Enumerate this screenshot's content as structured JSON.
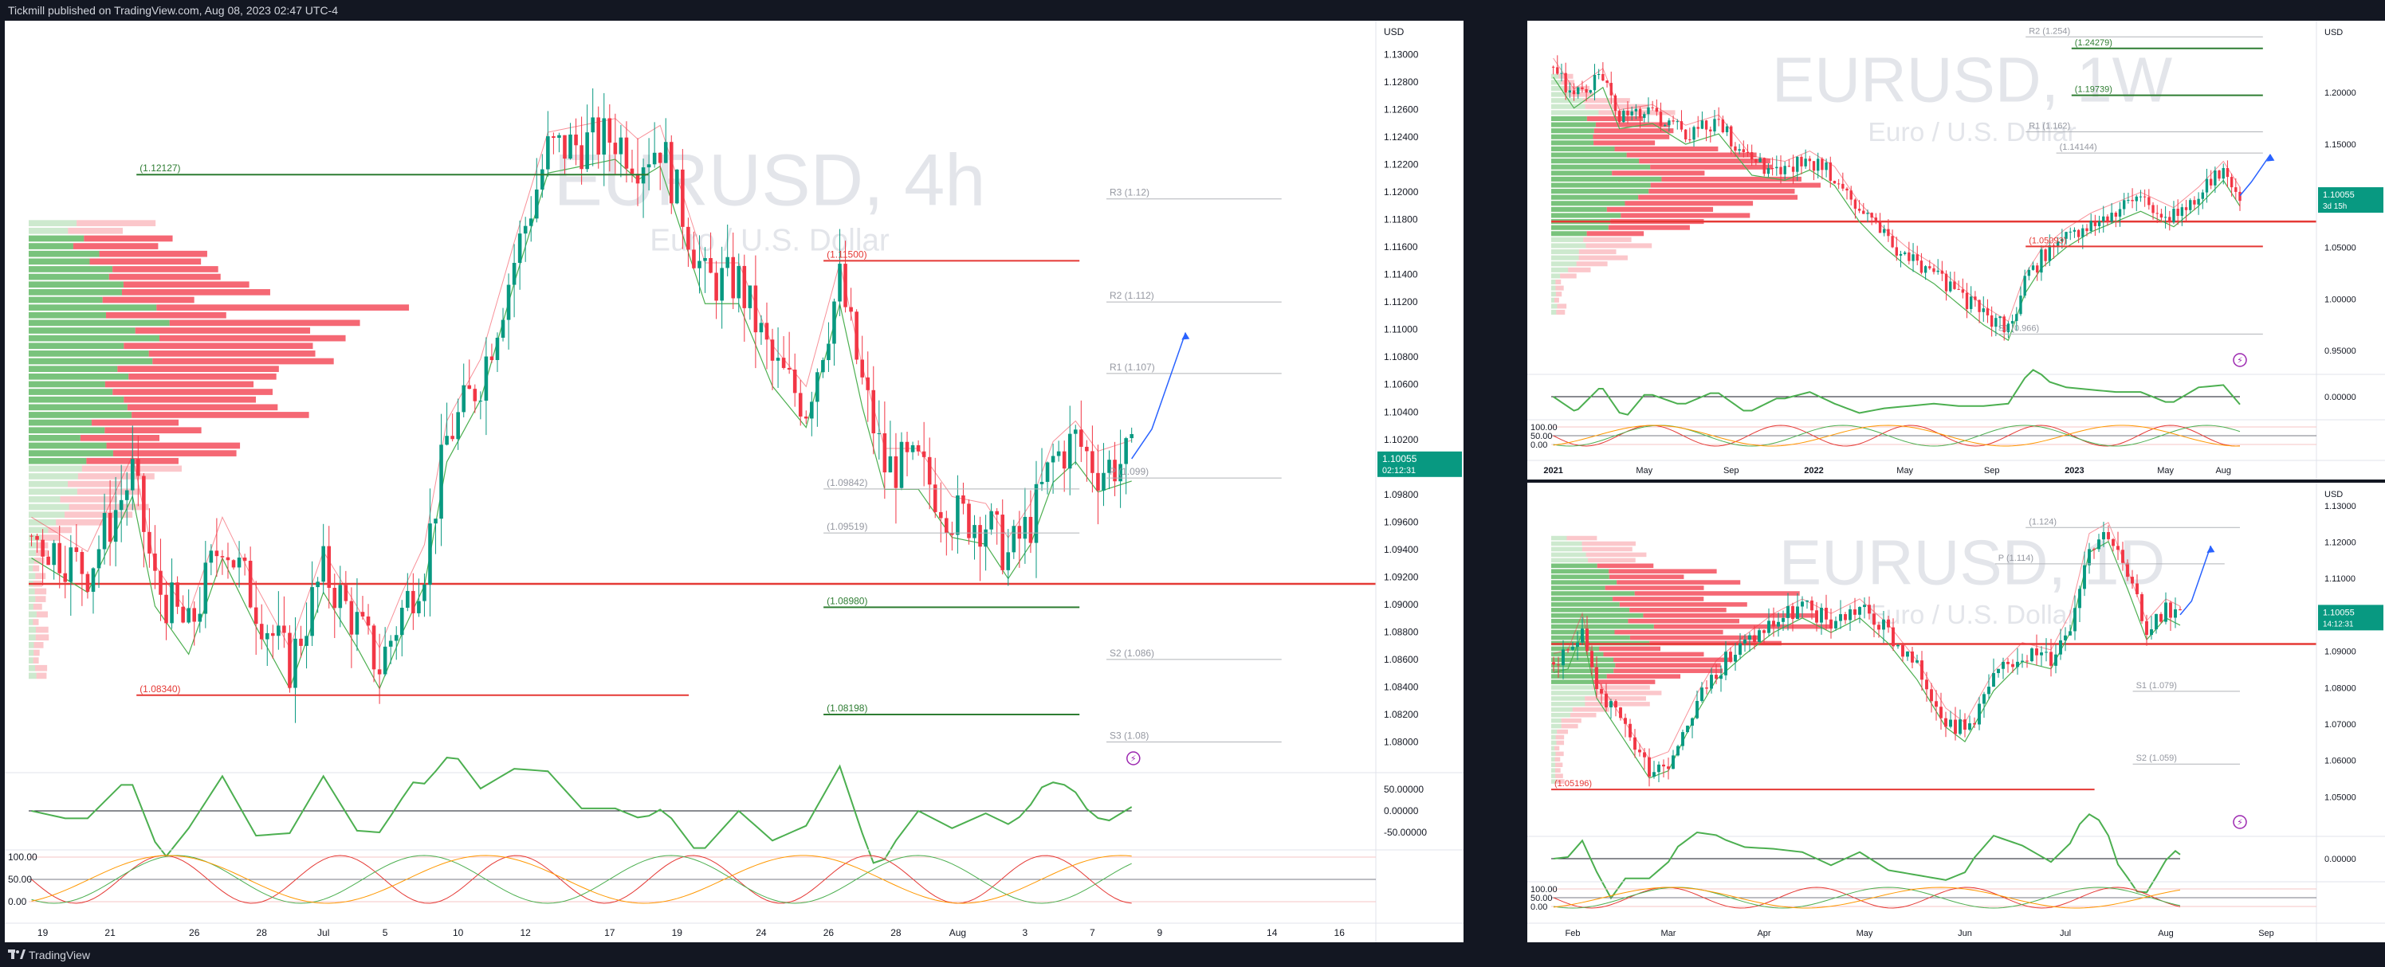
{
  "header": {
    "published": "Tickmill published on TradingView.com, Aug 08, 2023 02:47 UTC-4"
  },
  "footer": {
    "brand": "TradingView"
  },
  "colors": {
    "bull": "#089981",
    "bear": "#f23645",
    "bg": "#ffffff",
    "frame": "#131722",
    "ma_green": "#4caf50",
    "projection": "#2962ff"
  },
  "chart_data": [
    {
      "id": "main",
      "type": "candlestick",
      "watermark_symbol": "EURUSD, 4h",
      "watermark_desc": "Euro / U.S. Dollar",
      "currency": "USD",
      "ylim": [
        1.078,
        1.132
      ],
      "y_ticks": [
        "1.13000",
        "1.12800",
        "1.12600",
        "1.12400",
        "1.12200",
        "1.12000",
        "1.11800",
        "1.11600",
        "1.11400",
        "1.11200",
        "1.11000",
        "1.10800",
        "1.10600",
        "1.10400",
        "1.10200",
        "1.10000",
        "1.09800",
        "1.09600",
        "1.09400",
        "1.09200",
        "1.09000",
        "1.08800",
        "1.08600",
        "1.08400",
        "1.08200",
        "1.08000"
      ],
      "x_ticks": [
        {
          "label": "19",
          "i": 2
        },
        {
          "label": "21",
          "i": 14
        },
        {
          "label": "26",
          "i": 29
        },
        {
          "label": "28",
          "i": 41
        },
        {
          "label": "Jul",
          "i": 52
        },
        {
          "label": "5",
          "i": 63
        },
        {
          "label": "10",
          "i": 76
        },
        {
          "label": "12",
          "i": 88
        },
        {
          "label": "17",
          "i": 103
        },
        {
          "label": "19",
          "i": 115
        },
        {
          "label": "24",
          "i": 130
        },
        {
          "label": "26",
          "i": 142
        },
        {
          "label": "28",
          "i": 154
        },
        {
          "label": "Aug",
          "i": 165
        },
        {
          "label": "3",
          "i": 177
        },
        {
          "label": "7",
          "i": 189
        },
        {
          "label": "9",
          "i": 201
        },
        {
          "label": "14",
          "i": 221
        },
        {
          "label": "16",
          "i": 233
        }
      ],
      "n_slots": 240,
      "anchors": [
        [
          0,
          1.095
        ],
        [
          10,
          1.0925
        ],
        [
          18,
          1.0995
        ],
        [
          22,
          1.0915
        ],
        [
          28,
          1.088
        ],
        [
          34,
          1.095
        ],
        [
          40,
          1.09
        ],
        [
          46,
          1.0855
        ],
        [
          52,
          1.0925
        ],
        [
          58,
          1.0885
        ],
        [
          62,
          1.0855
        ],
        [
          66,
          1.0895
        ],
        [
          70,
          1.093
        ],
        [
          74,
          1.102
        ],
        [
          80,
          1.1065
        ],
        [
          86,
          1.115
        ],
        [
          92,
          1.123
        ],
        [
          98,
          1.1235
        ],
        [
          104,
          1.124
        ],
        [
          108,
          1.1225
        ],
        [
          112,
          1.1235
        ],
        [
          116,
          1.1185
        ],
        [
          120,
          1.1135
        ],
        [
          126,
          1.1135
        ],
        [
          132,
          1.1075
        ],
        [
          138,
          1.1045
        ],
        [
          144,
          1.1135
        ],
        [
          148,
          1.106
        ],
        [
          152,
          1.1
        ],
        [
          158,
          1.1
        ],
        [
          164,
          1.0965
        ],
        [
          170,
          1.096
        ],
        [
          174,
          1.0935
        ],
        [
          178,
          1.096
        ],
        [
          182,
          1.1005
        ],
        [
          186,
          1.102
        ],
        [
          190,
          1.0998
        ],
        [
          196,
          1.1006
        ]
      ],
      "last_price": "1.10055",
      "countdown": "02:12:31",
      "levels": [
        {
          "label": "(1.12127)",
          "value": 1.12127,
          "color": "#2e7d32",
          "x0": 0.08,
          "x1": 0.46
        },
        {
          "label": "R3 (1.12)",
          "value": 1.1195,
          "color": "#b0b3b8",
          "x0": 0.8,
          "x1": 0.93
        },
        {
          "label": "(1.11500)",
          "value": 1.115,
          "color": "#e53935",
          "x0": 0.59,
          "x1": 0.78
        },
        {
          "label": "R2 (1.112)",
          "value": 1.112,
          "color": "#b0b3b8",
          "x0": 0.8,
          "x1": 0.93
        },
        {
          "label": "R1 (1.107)",
          "value": 1.1068,
          "color": "#b0b3b8",
          "x0": 0.8,
          "x1": 0.93
        },
        {
          "label": "(1.09842)",
          "value": 1.0984,
          "color": "#b0b3b8",
          "x0": 0.59,
          "x1": 0.78
        },
        {
          "label": "P (1.099)",
          "value": 1.0992,
          "color": "#b0b3b8",
          "x0": 0.8,
          "x1": 0.93
        },
        {
          "label": "(1.09519)",
          "value": 1.0952,
          "color": "#b0b3b8",
          "x0": 0.59,
          "x1": 0.78
        },
        {
          "label": "(1.08980)",
          "value": 1.0898,
          "color": "#2e7d32",
          "x0": 0.59,
          "x1": 0.78
        },
        {
          "label": "S2 (1.086)",
          "value": 1.086,
          "color": "#b0b3b8",
          "x0": 0.8,
          "x1": 0.93
        },
        {
          "label": "(1.08340)",
          "value": 1.0834,
          "color": "#e53935",
          "x0": 0.08,
          "x1": 0.49
        },
        {
          "label": "(1.08198)",
          "value": 1.082,
          "color": "#2e7d32",
          "x0": 0.59,
          "x1": 0.78
        },
        {
          "label": "S3 (1.08)",
          "value": 1.08,
          "color": "#b0b3b8",
          "x0": 0.8,
          "x1": 0.93
        }
      ],
      "red_zone": 1.0915,
      "volume_profile_rows": 60,
      "osc1_ticks": [
        "50.00000",
        "0.00000",
        "-50.00000"
      ],
      "osc2_ticks": [
        "100.00",
        "50.00",
        "0.00"
      ]
    },
    {
      "id": "weekly",
      "type": "candlestick",
      "watermark_symbol": "EURUSD, 1W",
      "watermark_desc": "Euro / U.S. Dollar",
      "currency": "USD",
      "ylim": [
        0.93,
        1.265
      ],
      "y_ticks": [
        "1.20000",
        "1.15000",
        "1.10000",
        "1.05000",
        "1.00000",
        "0.95000"
      ],
      "x_ticks": [
        {
          "label": "2021",
          "i": 0
        },
        {
          "label": "May",
          "i": 22
        },
        {
          "label": "Sep",
          "i": 43
        },
        {
          "label": "2022",
          "i": 63
        },
        {
          "label": "May",
          "i": 85
        },
        {
          "label": "Sep",
          "i": 106
        },
        {
          "label": "2023",
          "i": 126
        },
        {
          "label": "May",
          "i": 148
        },
        {
          "label": "Aug",
          "i": 162
        }
      ],
      "n_slots": 185,
      "anchors": [
        [
          0,
          1.225
        ],
        [
          5,
          1.195
        ],
        [
          12,
          1.215
        ],
        [
          16,
          1.175
        ],
        [
          24,
          1.18
        ],
        [
          32,
          1.16
        ],
        [
          40,
          1.17
        ],
        [
          48,
          1.13
        ],
        [
          56,
          1.125
        ],
        [
          62,
          1.135
        ],
        [
          68,
          1.12
        ],
        [
          74,
          1.085
        ],
        [
          80,
          1.06
        ],
        [
          86,
          1.04
        ],
        [
          92,
          1.025
        ],
        [
          98,
          1.005
        ],
        [
          104,
          0.985
        ],
        [
          110,
          0.97
        ],
        [
          114,
          1.015
        ],
        [
          118,
          1.04
        ],
        [
          124,
          1.06
        ],
        [
          130,
          1.075
        ],
        [
          136,
          1.085
        ],
        [
          142,
          1.095
        ],
        [
          150,
          1.08
        ],
        [
          156,
          1.1
        ],
        [
          162,
          1.125
        ],
        [
          166,
          1.1
        ]
      ],
      "last_price": "1.10055",
      "countdown": "3d 15h",
      "levels": [
        {
          "label": "R2 (1.254)",
          "value": 1.254,
          "color": "#b0b3b8",
          "x0": 0.62,
          "x1": 0.93
        },
        {
          "label": "(1.24279)",
          "value": 1.2428,
          "color": "#2e7d32",
          "x0": 0.68,
          "x1": 0.93
        },
        {
          "label": "(1.19739)",
          "value": 1.1974,
          "color": "#2e7d32",
          "x0": 0.68,
          "x1": 0.93
        },
        {
          "label": "R1 (1.162)",
          "value": 1.162,
          "color": "#b0b3b8",
          "x0": 0.62,
          "x1": 0.93
        },
        {
          "label": "(1.14144)",
          "value": 1.1414,
          "color": "#b0b3b8",
          "x0": 0.66,
          "x1": 0.93
        },
        {
          "label": "(1.05093)",
          "value": 1.0509,
          "color": "#e53935",
          "x0": 0.62,
          "x1": 0.93
        },
        {
          "label": "S1 (0.966)",
          "value": 0.966,
          "color": "#b0b3b8",
          "x0": 0.58,
          "x1": 0.93
        }
      ],
      "red_zone": 1.075,
      "volume_profile_rows": 40,
      "osc1_ticks": [
        "0.00000"
      ],
      "osc2_ticks": [
        "100.00",
        "50.00",
        "0.00"
      ]
    },
    {
      "id": "daily",
      "type": "candlestick",
      "watermark_symbol": "EURUSD, 1D",
      "watermark_desc": "Euro / U.S. Dollar",
      "currency": "USD",
      "ylim": [
        1.04,
        1.135
      ],
      "y_ticks": [
        "1.13000",
        "1.12000",
        "1.11000",
        "1.10000",
        "1.09000",
        "1.08000",
        "1.07000",
        "1.06000",
        "1.05000"
      ],
      "x_ticks": [
        {
          "label": "Feb",
          "i": 4
        },
        {
          "label": "Mar",
          "i": 24
        },
        {
          "label": "Apr",
          "i": 44
        },
        {
          "label": "May",
          "i": 65
        },
        {
          "label": "Jun",
          "i": 86
        },
        {
          "label": "Jul",
          "i": 107
        },
        {
          "label": "Aug",
          "i": 128
        },
        {
          "label": "Sep",
          "i": 149
        }
      ],
      "n_slots": 160,
      "anchors": [
        [
          0,
          1.087
        ],
        [
          3,
          1.088
        ],
        [
          6,
          1.098
        ],
        [
          9,
          1.08
        ],
        [
          14,
          1.07
        ],
        [
          20,
          1.058
        ],
        [
          24,
          1.06
        ],
        [
          30,
          1.076
        ],
        [
          34,
          1.085
        ],
        [
          40,
          1.092
        ],
        [
          46,
          1.098
        ],
        [
          52,
          1.102
        ],
        [
          58,
          1.098
        ],
        [
          64,
          1.102
        ],
        [
          70,
          1.095
        ],
        [
          76,
          1.085
        ],
        [
          82,
          1.072
        ],
        [
          86,
          1.068
        ],
        [
          92,
          1.082
        ],
        [
          98,
          1.09
        ],
        [
          104,
          1.088
        ],
        [
          108,
          1.098
        ],
        [
          112,
          1.12
        ],
        [
          116,
          1.123
        ],
        [
          120,
          1.11
        ],
        [
          124,
          1.096
        ],
        [
          128,
          1.102
        ],
        [
          131,
          1.1
        ]
      ],
      "last_price": "1.10055",
      "countdown": "14:12:31",
      "levels": [
        {
          "label": "P (1.114)",
          "value": 1.114,
          "color": "#b0b3b8",
          "x0": 0.58,
          "x1": 0.88
        },
        {
          "label": "(1.124)",
          "value": 1.124,
          "color": "#b0b3b8",
          "x0": 0.62,
          "x1": 0.9
        },
        {
          "label": "S1 (1.079)",
          "value": 1.079,
          "color": "#b0b3b8",
          "x0": 0.76,
          "x1": 0.9
        },
        {
          "label": "S2 (1.059)",
          "value": 1.059,
          "color": "#b0b3b8",
          "x0": 0.76,
          "x1": 0.9
        },
        {
          "label": "(1.05196)",
          "value": 1.052,
          "color": "#e53935",
          "x0": 0.0,
          "x1": 0.71
        }
      ],
      "red_zone": 1.092,
      "volume_profile_rows": 45,
      "osc1_ticks": [
        "0.00000"
      ],
      "osc2_ticks": [
        "100.00",
        "50.00",
        "0.00"
      ]
    }
  ]
}
